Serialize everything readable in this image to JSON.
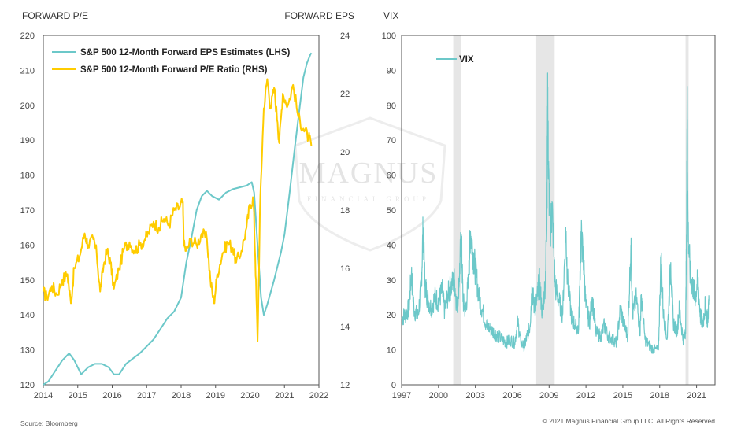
{
  "chart_data": [
    {
      "type": "line",
      "left_axis_title": "FORWARD P/E",
      "right_axis_title": "FORWARD EPS",
      "left_ylim": [
        120,
        220
      ],
      "left_ticks": [
        "120",
        "130",
        "140",
        "150",
        "160",
        "170",
        "180",
        "190",
        "200",
        "210",
        "220"
      ],
      "right_ylim": [
        12,
        24
      ],
      "right_ticks": [
        "12",
        "14",
        "16",
        "18",
        "20",
        "22",
        "24"
      ],
      "xlim": [
        2014,
        2022
      ],
      "x_ticks": [
        "2014",
        "2015",
        "2016",
        "2017",
        "2018",
        "2019",
        "2020",
        "2021",
        "2022"
      ],
      "legend": "top-left",
      "grid": false,
      "series": [
        {
          "name": "S&P 500 12-Month Forward EPS Estimates (LHS)",
          "color": "#6cc8c9",
          "axis": "left",
          "points": [
            [
              2014.0,
              120
            ],
            [
              2014.15,
              121
            ],
            [
              2014.35,
              124
            ],
            [
              2014.55,
              127
            ],
            [
              2014.75,
              129
            ],
            [
              2014.9,
              127
            ],
            [
              2015.1,
              123
            ],
            [
              2015.3,
              125
            ],
            [
              2015.5,
              126
            ],
            [
              2015.7,
              126
            ],
            [
              2015.9,
              125
            ],
            [
              2016.05,
              123
            ],
            [
              2016.2,
              123
            ],
            [
              2016.4,
              126
            ],
            [
              2016.6,
              127.5
            ],
            [
              2016.8,
              129
            ],
            [
              2017.0,
              131
            ],
            [
              2017.2,
              133
            ],
            [
              2017.4,
              136
            ],
            [
              2017.6,
              139
            ],
            [
              2017.8,
              141
            ],
            [
              2018.0,
              145
            ],
            [
              2018.15,
              155
            ],
            [
              2018.3,
              162
            ],
            [
              2018.45,
              170
            ],
            [
              2018.6,
              174
            ],
            [
              2018.75,
              175.5
            ],
            [
              2018.9,
              174
            ],
            [
              2019.1,
              173
            ],
            [
              2019.3,
              175
            ],
            [
              2019.5,
              176
            ],
            [
              2019.7,
              176.5
            ],
            [
              2019.9,
              177
            ],
            [
              2020.05,
              178
            ],
            [
              2020.12,
              175
            ],
            [
              2020.22,
              160
            ],
            [
              2020.32,
              145
            ],
            [
              2020.4,
              140
            ],
            [
              2020.5,
              143
            ],
            [
              2020.7,
              150
            ],
            [
              2020.9,
              158
            ],
            [
              2021.0,
              163
            ],
            [
              2021.15,
              175
            ],
            [
              2021.3,
              188
            ],
            [
              2021.45,
              200
            ],
            [
              2021.55,
              208
            ],
            [
              2021.65,
              212
            ],
            [
              2021.75,
              214.5
            ],
            [
              2021.78,
              215
            ]
          ]
        },
        {
          "name": "S&P 500 12-Month Forward P/E Ratio (RHS)",
          "color": "#ffcc00",
          "axis": "right",
          "points": [
            [
              2014.0,
              15.2
            ],
            [
              2014.1,
              15.0
            ],
            [
              2014.25,
              15.4
            ],
            [
              2014.4,
              15.1
            ],
            [
              2014.55,
              15.6
            ],
            [
              2014.7,
              15.8
            ],
            [
              2014.8,
              14.8
            ],
            [
              2014.9,
              16.0
            ],
            [
              2015.05,
              16.4
            ],
            [
              2015.2,
              17.2
            ],
            [
              2015.3,
              16.8
            ],
            [
              2015.45,
              17.0
            ],
            [
              2015.55,
              16.5
            ],
            [
              2015.65,
              15.2
            ],
            [
              2015.75,
              16.1
            ],
            [
              2015.85,
              16.6
            ],
            [
              2015.95,
              16.2
            ],
            [
              2016.05,
              15.3
            ],
            [
              2016.2,
              16.0
            ],
            [
              2016.35,
              16.7
            ],
            [
              2016.5,
              16.9
            ],
            [
              2016.65,
              16.6
            ],
            [
              2016.8,
              16.8
            ],
            [
              2016.95,
              17.0
            ],
            [
              2017.05,
              17.2
            ],
            [
              2017.2,
              17.6
            ],
            [
              2017.35,
              17.4
            ],
            [
              2017.5,
              17.7
            ],
            [
              2017.65,
              17.5
            ],
            [
              2017.8,
              18.0
            ],
            [
              2017.95,
              18.1
            ],
            [
              2018.05,
              18.3
            ],
            [
              2018.08,
              16.8
            ],
            [
              2018.15,
              16.6
            ],
            [
              2018.3,
              17.0
            ],
            [
              2018.45,
              16.8
            ],
            [
              2018.6,
              17.2
            ],
            [
              2018.75,
              17.0
            ],
            [
              2018.85,
              15.6
            ],
            [
              2018.95,
              14.8
            ],
            [
              2019.05,
              15.8
            ],
            [
              2019.2,
              16.5
            ],
            [
              2019.35,
              16.9
            ],
            [
              2019.5,
              16.7
            ],
            [
              2019.6,
              16.2
            ],
            [
              2019.75,
              16.6
            ],
            [
              2019.9,
              17.4
            ],
            [
              2020.0,
              18.2
            ],
            [
              2020.1,
              18.4
            ],
            [
              2020.15,
              16.4
            ],
            [
              2020.22,
              13.5
            ],
            [
              2020.3,
              18.5
            ],
            [
              2020.4,
              21.5
            ],
            [
              2020.5,
              22.5
            ],
            [
              2020.6,
              21.5
            ],
            [
              2020.7,
              22.2
            ],
            [
              2020.8,
              21.0
            ],
            [
              2020.85,
              20.3
            ],
            [
              2020.95,
              22.0
            ],
            [
              2021.1,
              21.6
            ],
            [
              2021.25,
              22.3
            ],
            [
              2021.4,
              21.2
            ],
            [
              2021.55,
              20.8
            ],
            [
              2021.7,
              20.5
            ],
            [
              2021.78,
              20.2
            ]
          ]
        }
      ]
    },
    {
      "type": "line",
      "left_axis_title": "VIX",
      "ylim": [
        0,
        100
      ],
      "y_ticks": [
        "0",
        "10",
        "20",
        "30",
        "40",
        "50",
        "60",
        "70",
        "80",
        "90",
        "100"
      ],
      "xlim": [
        1997,
        2022.5
      ],
      "x_ticks": [
        "1997",
        "2000",
        "2003",
        "2006",
        "2009",
        "2012",
        "2015",
        "2018",
        "2021"
      ],
      "legend": "top-left",
      "grid": false,
      "shaded_periods": [
        [
          2001.2,
          2001.85
        ],
        [
          2007.95,
          2009.45
        ],
        [
          2020.1,
          2020.35
        ]
      ],
      "series": [
        {
          "name": "VIX",
          "color": "#6cc8c9",
          "points": [
            [
              1997.0,
              19
            ],
            [
              1997.3,
              20
            ],
            [
              1997.6,
              22
            ],
            [
              1997.8,
              32
            ],
            [
              1998.0,
              22
            ],
            [
              1998.3,
              19
            ],
            [
              1998.6,
              28
            ],
            [
              1998.75,
              45
            ],
            [
              1998.9,
              29
            ],
            [
              1999.1,
              25
            ],
            [
              1999.4,
              22
            ],
            [
              1999.7,
              25
            ],
            [
              2000.0,
              24
            ],
            [
              2000.3,
              27
            ],
            [
              2000.5,
              21
            ],
            [
              2000.8,
              26
            ],
            [
              2001.0,
              28
            ],
            [
              2001.3,
              30
            ],
            [
              2001.5,
              22
            ],
            [
              2001.7,
              31
            ],
            [
              2001.85,
              43
            ],
            [
              2002.0,
              24
            ],
            [
              2002.2,
              21
            ],
            [
              2002.45,
              30
            ],
            [
              2002.6,
              44
            ],
            [
              2002.8,
              38
            ],
            [
              2003.0,
              33
            ],
            [
              2003.3,
              25
            ],
            [
              2003.6,
              21
            ],
            [
              2003.9,
              17
            ],
            [
              2004.2,
              16
            ],
            [
              2004.5,
              15
            ],
            [
              2004.8,
              14
            ],
            [
              2005.2,
              13
            ],
            [
              2005.5,
              12
            ],
            [
              2005.8,
              13
            ],
            [
              2006.2,
              12
            ],
            [
              2006.45,
              18
            ],
            [
              2006.7,
              12
            ],
            [
              2007.0,
              11
            ],
            [
              2007.2,
              14
            ],
            [
              2007.45,
              17
            ],
            [
              2007.6,
              28
            ],
            [
              2007.8,
              22
            ],
            [
              2008.0,
              24
            ],
            [
              2008.2,
              30
            ],
            [
              2008.45,
              20
            ],
            [
              2008.7,
              30
            ],
            [
              2008.82,
              50
            ],
            [
              2008.88,
              81
            ],
            [
              2008.95,
              60
            ],
            [
              2009.1,
              45
            ],
            [
              2009.25,
              50
            ],
            [
              2009.5,
              28
            ],
            [
              2009.8,
              24
            ],
            [
              2010.1,
              20
            ],
            [
              2010.35,
              45
            ],
            [
              2010.5,
              30
            ],
            [
              2010.8,
              20
            ],
            [
              2011.1,
              17
            ],
            [
              2011.4,
              16
            ],
            [
              2011.6,
              43
            ],
            [
              2011.8,
              35
            ],
            [
              2012.0,
              22
            ],
            [
              2012.3,
              18
            ],
            [
              2012.5,
              25
            ],
            [
              2012.8,
              15
            ],
            [
              2013.2,
              14
            ],
            [
              2013.5,
              17
            ],
            [
              2013.8,
              14
            ],
            [
              2014.2,
              13
            ],
            [
              2014.5,
              12
            ],
            [
              2014.8,
              22
            ],
            [
              2015.1,
              17
            ],
            [
              2015.4,
              14
            ],
            [
              2015.65,
              40
            ],
            [
              2015.8,
              20
            ],
            [
              2016.1,
              25
            ],
            [
              2016.4,
              15
            ],
            [
              2016.5,
              26
            ],
            [
              2016.8,
              13
            ],
            [
              2017.2,
              11
            ],
            [
              2017.5,
              10
            ],
            [
              2017.9,
              10
            ],
            [
              2018.1,
              37
            ],
            [
              2018.3,
              20
            ],
            [
              2018.6,
              13
            ],
            [
              2018.9,
              35
            ],
            [
              2019.1,
              18
            ],
            [
              2019.4,
              15
            ],
            [
              2019.6,
              22
            ],
            [
              2019.9,
              13
            ],
            [
              2020.1,
              15
            ],
            [
              2020.18,
              40
            ],
            [
              2020.23,
              82
            ],
            [
              2020.3,
              45
            ],
            [
              2020.5,
              30
            ],
            [
              2020.7,
              28
            ],
            [
              2020.9,
              25
            ],
            [
              2021.1,
              30
            ],
            [
              2021.3,
              20
            ],
            [
              2021.5,
              17
            ],
            [
              2021.7,
              23
            ],
            [
              2021.9,
              18
            ],
            [
              2022.0,
              24
            ]
          ]
        }
      ]
    }
  ],
  "watermark": {
    "main": "MAGNUS",
    "sub": "FINANCIAL GROUP"
  },
  "footer": {
    "source": "Source: Bloomberg",
    "copyright": "© 2021 Magnus Financial Group LLC. All Rights Reserved"
  }
}
